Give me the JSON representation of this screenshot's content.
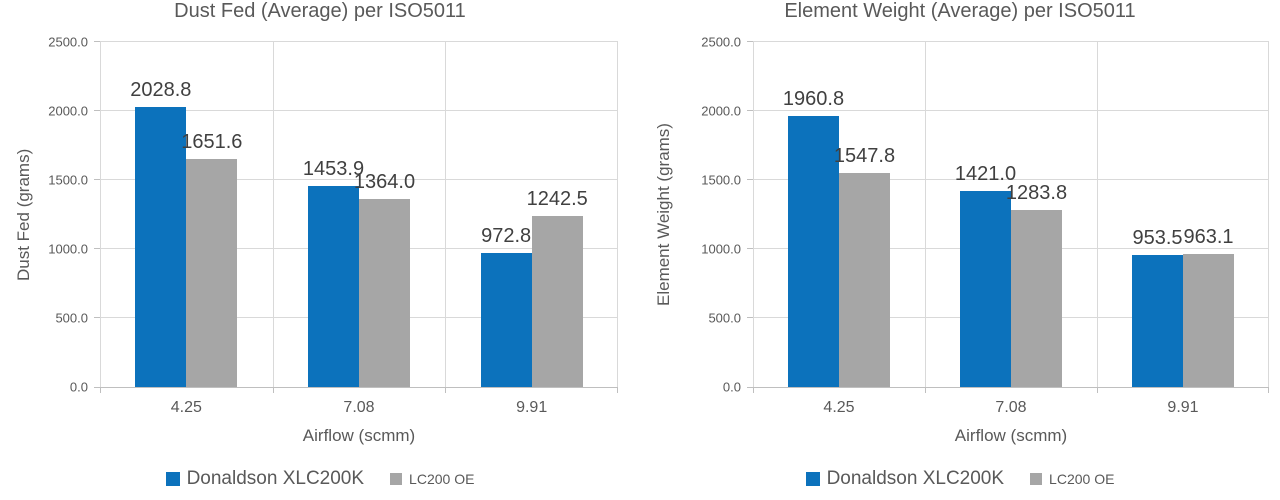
{
  "colors": {
    "series_blue": "#0C72BC",
    "series_gray": "#A6A6A6",
    "gridline": "#D9D9D9",
    "axis_line": "#BFBFBF",
    "text": "#595959",
    "data_label": "#404040",
    "background": "#FFFFFF"
  },
  "chart_data": [
    {
      "type": "bar",
      "title": "Dust Fed (Average) per ISO5011",
      "xlabel": "Airflow (scmm)",
      "ylabel": "Dust Fed (grams)",
      "categories": [
        "4.25",
        "7.08",
        "9.91"
      ],
      "series": [
        {
          "name": "Donaldson XLC200K",
          "color": "#0C72BC",
          "values": [
            2028.8,
            1453.9,
            972.8
          ]
        },
        {
          "name": "LC200 OE",
          "color": "#A6A6A6",
          "values": [
            1651.6,
            1364.0,
            1242.5
          ]
        }
      ],
      "ylim": [
        0,
        2500
      ],
      "ytick_step": 500,
      "ytick_labels": [
        "0.0",
        "500.0",
        "1000.0",
        "1500.0",
        "2000.0",
        "2500.0"
      ],
      "data_labels": [
        "2028.8",
        "1453.9",
        "972.8",
        "1651.6",
        "1364.0",
        "1242.5"
      ],
      "grid": true,
      "legend_position": "bottom"
    },
    {
      "type": "bar",
      "title": "Element Weight (Average) per ISO5011",
      "xlabel": "Airflow (scmm)",
      "ylabel": "Element Weight (grams)",
      "categories": [
        "4.25",
        "7.08",
        "9.91"
      ],
      "series": [
        {
          "name": "Donaldson XLC200K",
          "color": "#0C72BC",
          "values": [
            1960.8,
            1421.0,
            953.5
          ]
        },
        {
          "name": "LC200 OE",
          "color": "#A6A6A6",
          "values": [
            1547.8,
            1283.8,
            963.1
          ]
        }
      ],
      "ylim": [
        0,
        2500
      ],
      "ytick_step": 500,
      "ytick_labels": [
        "0.0",
        "500.0",
        "1000.0",
        "1500.0",
        "2000.0",
        "2500.0"
      ],
      "data_labels": [
        "1960.8",
        "1421.0",
        "953.5",
        "1547.8",
        "1283.8",
        "963.1"
      ],
      "grid": true,
      "legend_position": "bottom"
    }
  ]
}
